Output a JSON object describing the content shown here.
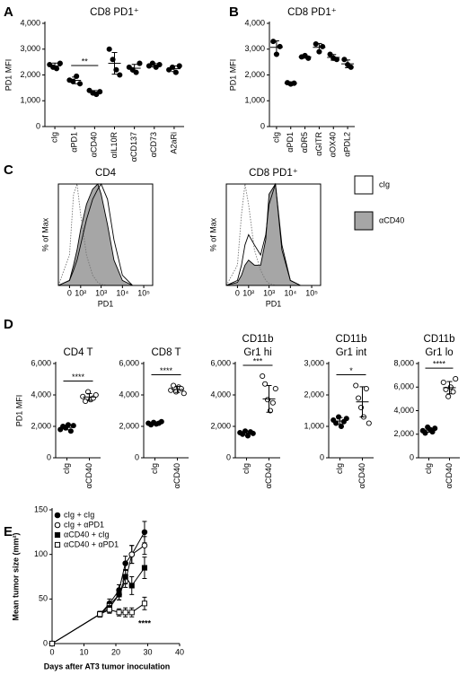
{
  "chart_data": [
    {
      "type": "dot",
      "panel_label": "A",
      "title": "CD8 PD1⁺",
      "ylabel": "PD1 MFI",
      "categories": [
        "cIg",
        "αPD1",
        "αCD40",
        "αIL10R",
        "αCD137",
        "αCD73",
        "A2aRi"
      ],
      "values": [
        [
          2400,
          2300,
          2250,
          2450
        ],
        [
          1800,
          1750,
          1950,
          1660
        ],
        [
          1400,
          1300,
          1250,
          1350
        ],
        [
          3000,
          2600,
          2200,
          2000
        ],
        [
          2300,
          2200,
          2100,
          2450
        ],
        [
          2350,
          2450,
          2300,
          2400
        ],
        [
          2200,
          2300,
          2100,
          2350
        ]
      ],
      "means": [
        2350,
        1790,
        1325,
        2450,
        2260,
        2375,
        2240
      ],
      "errors": [
        110,
        130,
        70,
        420,
        150,
        65,
        110
      ],
      "point_colors": [
        "#000",
        "#000",
        "#000",
        "#000",
        "#000",
        "#000",
        "#000"
      ],
      "ylim": [
        0,
        4000
      ],
      "yticks": [
        0,
        {
          "value": 1000,
          "label": "1,000"
        },
        {
          "value": 2000,
          "label": "2,000"
        },
        {
          "value": 3000,
          "label": "3,000"
        },
        {
          "value": 4000,
          "label": "4,000"
        }
      ],
      "annotations": [
        {
          "text": "**",
          "span": [
            "αPD1",
            "αCD40"
          ]
        }
      ]
    },
    {
      "type": "dot",
      "panel_label": "B",
      "title": "CD8 PD1⁺",
      "ylabel": "PD1 MFI",
      "categories": [
        "cIg",
        "αPD1",
        "αDR5",
        "αGITR",
        "αOX40",
        "αPDL2"
      ],
      "values": [
        [
          3300,
          2800,
          3100
        ],
        [
          1700,
          1650,
          1680
        ],
        [
          2700,
          2750,
          2650
        ],
        [
          3200,
          2900,
          3100
        ],
        [
          2800,
          2650,
          2600
        ],
        [
          2600,
          2400,
          2300
        ]
      ],
      "means": [
        3070,
        1680,
        2700,
        3070,
        2680,
        2430
      ],
      "errors": [
        250,
        30,
        50,
        150,
        110,
        150
      ],
      "point_colors": [
        "#000",
        "#000",
        "#000",
        "#000",
        "#000",
        "#000"
      ],
      "ylim": [
        0,
        4000
      ],
      "yticks": [
        0,
        {
          "value": 1000,
          "label": "1,000"
        },
        {
          "value": 2000,
          "label": "2,000"
        },
        {
          "value": 3000,
          "label": "3,000"
        },
        {
          "value": 4000,
          "label": "4,000"
        }
      ]
    },
    {
      "type": "density",
      "panel_label": "C",
      "title": "CD4",
      "ylabel": "% of Max",
      "xlabel": "PD1",
      "xscale": "biexponential",
      "x": [
        -100,
        0,
        30,
        60,
        100,
        200,
        400,
        700,
        1000,
        2000,
        4000,
        10000,
        30000
      ],
      "xlim": [
        -100,
        262144
      ],
      "xticks": [
        0,
        {
          "value": 100,
          "label": "10²"
        },
        {
          "value": 1000,
          "label": "10³"
        },
        {
          "value": 10000,
          "label": "10⁴"
        },
        {
          "value": 100000,
          "label": "10⁵"
        }
      ],
      "ylim": [
        0,
        100
      ],
      "series": [
        {
          "color": "#777",
          "line_style": "dotted",
          "fill": "none",
          "values": [
            0,
            30,
            90,
            100,
            70,
            30,
            10,
            3,
            1,
            0,
            0,
            0,
            0
          ]
        },
        {
          "name": "cIg",
          "color": "#000",
          "fill": "none",
          "values": [
            0,
            5,
            15,
            25,
            40,
            65,
            85,
            95,
            100,
            85,
            45,
            10,
            0
          ]
        },
        {
          "name": "αCD40",
          "color": "#000",
          "fill": "#a6a6a6",
          "values": [
            0,
            5,
            20,
            35,
            55,
            80,
            95,
            100,
            90,
            60,
            25,
            5,
            0
          ]
        }
      ]
    },
    {
      "type": "density",
      "title": "CD8 PD1⁺",
      "ylabel": "% of Max",
      "xlabel": "PD1",
      "xscale": "biexponential",
      "legend": "right",
      "x": [
        -100,
        0,
        30,
        60,
        100,
        200,
        400,
        700,
        1000,
        2000,
        4000,
        10000,
        30000
      ],
      "xlim": [
        -100,
        262144
      ],
      "xticks": [
        0,
        {
          "value": 100,
          "label": "10²"
        },
        {
          "value": 1000,
          "label": "10³"
        },
        {
          "value": 10000,
          "label": "10⁴"
        },
        {
          "value": 100000,
          "label": "10⁵"
        }
      ],
      "ylim": [
        0,
        100
      ],
      "series": [
        {
          "color": "#777",
          "line_style": "dotted",
          "fill": "none",
          "values": [
            0,
            20,
            70,
            100,
            80,
            35,
            15,
            5,
            2,
            0,
            0,
            0,
            0
          ]
        },
        {
          "name": "cIg",
          "color": "#000",
          "fill": "none",
          "values": [
            0,
            5,
            20,
            40,
            50,
            40,
            30,
            50,
            80,
            100,
            40,
            5,
            0
          ]
        },
        {
          "name": "αCD40",
          "color": "#000",
          "fill": "#a6a6a6",
          "values": [
            0,
            3,
            10,
            20,
            25,
            20,
            20,
            45,
            90,
            100,
            35,
            5,
            0
          ]
        }
      ]
    },
    {
      "type": "dot",
      "panel_label": "D",
      "title": "CD4 T",
      "ylabel": "PD1 MFI",
      "categories": [
        "cIg",
        "αCD40"
      ],
      "values": [
        [
          1800,
          2000,
          1900,
          2100,
          1700,
          2050
        ],
        [
          3900,
          3600,
          4200,
          3700,
          3800,
          4000
        ]
      ],
      "means": [
        1930,
        3870
      ],
      "errors": [
        150,
        220
      ],
      "point_colors": [
        "#000",
        "#fff"
      ],
      "ylim": [
        0,
        6000
      ],
      "yticks": [
        0,
        {
          "value": 2000,
          "label": "2,000"
        },
        {
          "value": 4000,
          "label": "4,000"
        },
        {
          "value": 6000,
          "label": "6,000"
        }
      ],
      "annotations": [
        {
          "text": "****",
          "span": [
            "cIg",
            "αCD40"
          ]
        }
      ]
    },
    {
      "type": "dot",
      "title": "CD8 T",
      "categories": [
        "cIg",
        "αCD40"
      ],
      "values": [
        [
          2200,
          2100,
          2250,
          2150,
          2200,
          2300
        ],
        [
          4300,
          4600,
          4200,
          4500,
          4400,
          4100
        ]
      ],
      "means": [
        2200,
        4350
      ],
      "errors": [
        70,
        190
      ],
      "point_colors": [
        "#000",
        "#fff"
      ],
      "ylim": [
        0,
        6000
      ],
      "yticks": [
        0,
        {
          "value": 2000,
          "label": "2,000"
        },
        {
          "value": 4000,
          "label": "4,000"
        },
        {
          "value": 6000,
          "label": "6,000"
        }
      ],
      "annotations": [
        {
          "text": "****",
          "span": [
            "cIg",
            "αCD40"
          ]
        }
      ]
    },
    {
      "type": "dot",
      "title": [
        "CD11b",
        "Gr1 hi"
      ],
      "categories": [
        "cIg",
        "αCD40"
      ],
      "values": [
        [
          1600,
          1500,
          1700,
          1400,
          1650,
          1550
        ],
        [
          5200,
          4700,
          3700,
          3000,
          3500,
          4400
        ]
      ],
      "means": [
        1570,
        3750
      ],
      "errors": [
        110,
        850
      ],
      "point_colors": [
        "#000",
        "#fff"
      ],
      "ylim": [
        0,
        6000
      ],
      "yticks": [
        0,
        {
          "value": 2000,
          "label": "2,000"
        },
        {
          "value": 4000,
          "label": "4,000"
        },
        {
          "value": 6000,
          "label": "6,000"
        }
      ],
      "annotations": [
        {
          "text": "***",
          "span": [
            "cIg",
            "αCD40"
          ]
        }
      ]
    },
    {
      "type": "dot",
      "title": [
        "CD11b",
        "Gr1 int"
      ],
      "categories": [
        "cIg",
        "αCD40"
      ],
      "values": [
        [
          1200,
          1100,
          1300,
          1000,
          1150,
          1250
        ],
        [
          2300,
          1900,
          1600,
          1300,
          2200,
          1100
        ]
      ],
      "means": [
        1170,
        1780
      ],
      "errors": [
        110,
        480
      ],
      "point_colors": [
        "#000",
        "#fff"
      ],
      "ylim": [
        0,
        3000
      ],
      "yticks": [
        0,
        {
          "value": 1000,
          "label": "1,000"
        },
        {
          "value": 2000,
          "label": "2,000"
        },
        {
          "value": 3000,
          "label": "3,000"
        }
      ],
      "annotations": [
        {
          "text": "*",
          "span": [
            "cIg",
            "αCD40"
          ]
        }
      ]
    },
    {
      "type": "dot",
      "title": [
        "CD11b",
        "Gr1 lo"
      ],
      "categories": [
        "cIg",
        "αCD40"
      ],
      "values": [
        [
          2300,
          2100,
          2600,
          2400,
          2200,
          2500
        ],
        [
          6400,
          5800,
          5200,
          6000,
          5600,
          6700
        ]
      ],
      "means": [
        2350,
        5950
      ],
      "errors": [
        180,
        520
      ],
      "point_colors": [
        "#000",
        "#fff"
      ],
      "ylim": [
        0,
        8000
      ],
      "yticks": [
        0,
        {
          "value": 2000,
          "label": "2,000"
        },
        {
          "value": 4000,
          "label": "4,000"
        },
        {
          "value": 6000,
          "label": "6,000"
        },
        {
          "value": 8000,
          "label": "8,000"
        }
      ],
      "annotations": [
        {
          "text": "****",
          "span": [
            "cIg",
            "αCD40"
          ]
        }
      ]
    },
    {
      "type": "line",
      "panel_label": "E",
      "xlabel": "Days after AT3 tumor inoculation",
      "ylabel": "Mean tumor size (mm²)",
      "legend": "upper left",
      "x": [
        0,
        15,
        18,
        21,
        23,
        25,
        29
      ],
      "xlim": [
        0,
        40
      ],
      "xticks": [
        0,
        10,
        20,
        30,
        40
      ],
      "ylim": [
        0,
        150
      ],
      "yticks": [
        0,
        50,
        100,
        150
      ],
      "series": [
        {
          "name": "cIg + cIg",
          "color": "#000",
          "marker": "circle",
          "marker_fill": "#000",
          "values": [
            0,
            33,
            45,
            60,
            90,
            100,
            125
          ],
          "errors": [
            0,
            3,
            5,
            6,
            8,
            10,
            12
          ]
        },
        {
          "name": "cIg + αPD1",
          "color": "#000",
          "marker": "circle",
          "marker_fill": "#fff",
          "values": [
            0,
            33,
            43,
            55,
            70,
            100,
            110
          ],
          "errors": [
            0,
            3,
            4,
            6,
            7,
            10,
            10
          ]
        },
        {
          "name": "αCD40 + cIg",
          "color": "#000",
          "marker": "square",
          "marker_fill": "#000",
          "values": [
            0,
            33,
            40,
            55,
            75,
            65,
            85
          ],
          "errors": [
            0,
            3,
            5,
            6,
            8,
            10,
            12
          ]
        },
        {
          "name": "αCD40 + αPD1",
          "color": "#000",
          "marker": "square",
          "marker_fill": "#fff",
          "values": [
            0,
            33,
            38,
            35,
            35,
            35,
            45
          ],
          "errors": [
            0,
            3,
            4,
            4,
            5,
            5,
            7
          ]
        }
      ],
      "annotations": [
        {
          "text": "****",
          "x": 29,
          "y": 22
        }
      ]
    }
  ]
}
